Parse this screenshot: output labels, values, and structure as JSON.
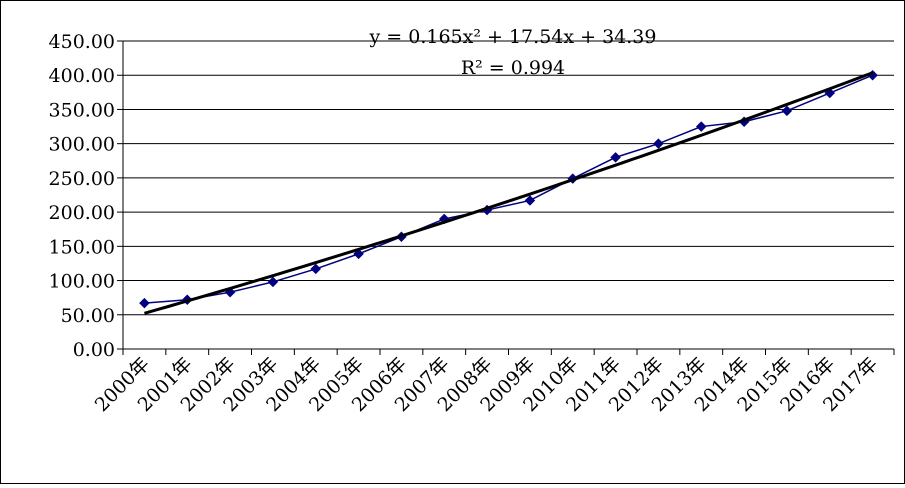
{
  "chart_data": {
    "type": "line",
    "categories": [
      "2000年",
      "2001年",
      "2002年",
      "2003年",
      "2004年",
      "2005年",
      "2006年",
      "2007年",
      "2008年",
      "2009年",
      "2010年",
      "2011年",
      "2012年",
      "2013年",
      "2014年",
      "2015年",
      "2016年",
      "2017年"
    ],
    "series": [
      {
        "values": [
          67,
          72,
          83,
          98,
          117,
          139,
          164,
          190,
          203,
          217,
          249,
          280,
          300,
          325,
          332,
          348,
          374,
          400
        ],
        "color": "#000080",
        "marker": "diamond"
      }
    ],
    "trendline": {
      "type": "polynomial",
      "equation": "y = 0.165x² + 17.54x + 34.39",
      "r_squared": "R² = 0.994",
      "coefficients": {
        "a": 0.165,
        "b": 17.54,
        "c": 34.39
      },
      "color": "#000000"
    },
    "yticks": [
      "0.00",
      "50.00",
      "100.00",
      "150.00",
      "200.00",
      "250.00",
      "300.00",
      "350.00",
      "400.00",
      "450.00"
    ],
    "ylim": [
      0,
      450
    ],
    "grid": true,
    "legend": "none",
    "title": "",
    "xlabel": "",
    "ylabel": ""
  }
}
